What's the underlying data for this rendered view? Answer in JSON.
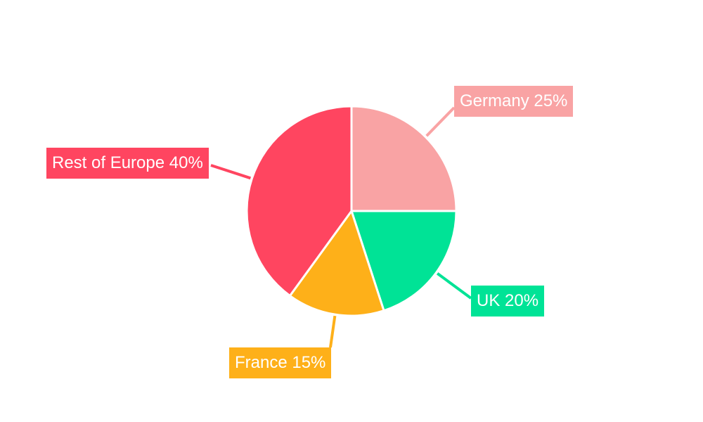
{
  "chart_data": {
    "type": "pie",
    "title": "",
    "start_angle": "top, clockwise",
    "slices": [
      {
        "label": "Germany",
        "value": 25,
        "text": "Germany 25%",
        "color": "#F9A3A4"
      },
      {
        "label": "UK",
        "value": 20,
        "text": "UK 20%",
        "color": "#00E396"
      },
      {
        "label": "France",
        "value": 15,
        "text": "France 15%",
        "color": "#FEB019"
      },
      {
        "label": "Rest of Europe",
        "value": 40,
        "text": "Rest of Europe 40%",
        "color": "#FF4560"
      }
    ],
    "legend": "none"
  }
}
